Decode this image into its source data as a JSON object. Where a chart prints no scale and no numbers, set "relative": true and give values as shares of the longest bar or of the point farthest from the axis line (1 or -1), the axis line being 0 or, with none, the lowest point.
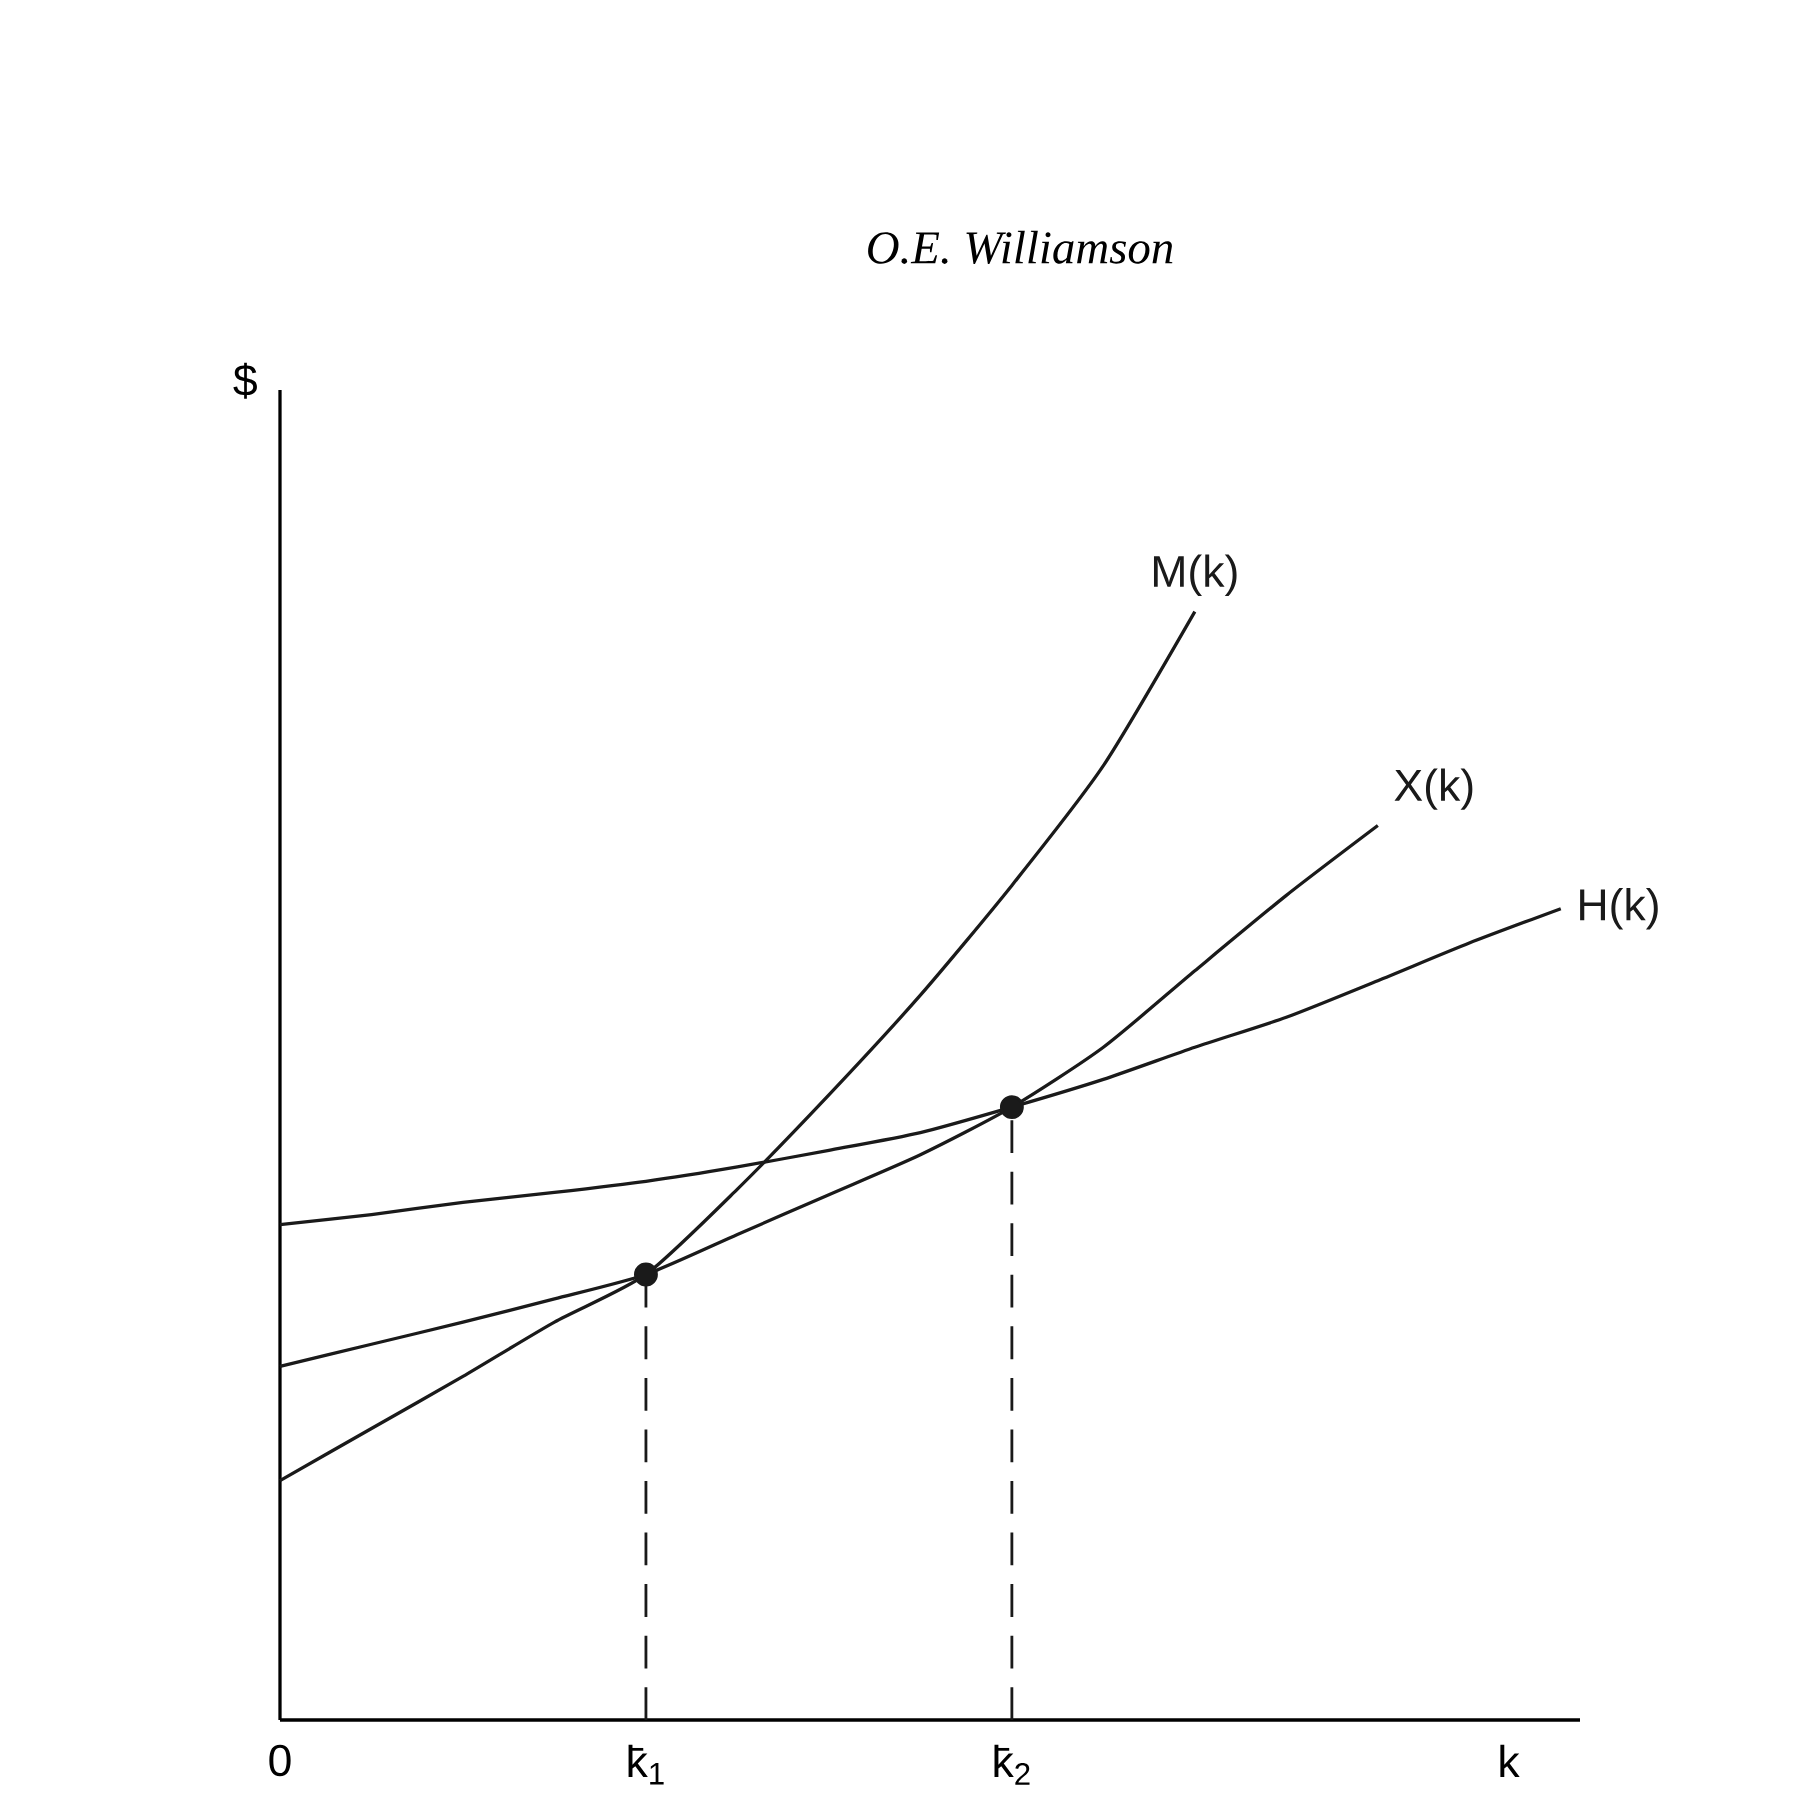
{
  "chart_data": {
    "type": "line",
    "title": "O.E. Williamson",
    "xlabel": "k",
    "ylabel": "$",
    "relative": true,
    "categories": [
      "0",
      null,
      null,
      null,
      "k̄$_{1}$",
      null,
      null,
      null,
      "k̄$_{2}$",
      null,
      null,
      null,
      null,
      null,
      null
    ],
    "series": [
      {
        "name": "M(k)",
        "color": "#1a1a1a",
        "values": [
          0.216,
          0.263,
          0.31,
          0.359,
          0.402,
          0.479,
          0.564,
          0.654,
          0.753,
          0.861,
          1,
          null,
          null,
          null,
          null
        ]
      },
      {
        "name": "X(k)",
        "color": "#1a1a1a",
        "values": [
          0.319,
          0.339,
          0.359,
          0.38,
          0.402,
          0.438,
          0.474,
          0.51,
          0.553,
          0.607,
          0.676,
          0.744,
          0.807,
          null,
          null
        ]
      },
      {
        "name": "H(k)",
        "color": "#1a1a1a",
        "values": [
          0.447,
          0.456,
          0.467,
          0.476,
          0.486,
          0.499,
          0.514,
          0.53,
          0.553,
          0.578,
          0.607,
          0.634,
          0.667,
          0.701,
          0.732
        ]
      },
      {
        "type": "lollipop",
        "color": "#1a1a1a",
        "line_style": "dashed",
        "marker": "circle",
        "values": [
          null,
          null,
          null,
          null,
          0.402,
          null,
          null,
          null,
          0.553,
          null,
          null,
          null,
          null,
          null,
          null
        ]
      }
    ]
  }
}
